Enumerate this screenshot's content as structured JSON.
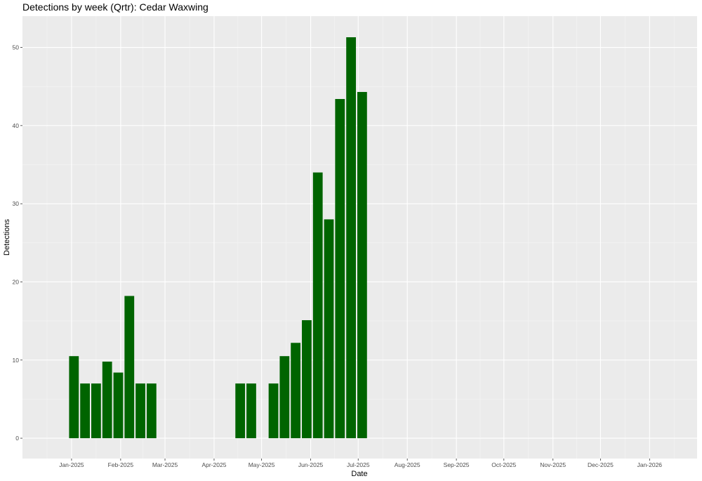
{
  "chart_data": {
    "type": "bar",
    "title": "Detections by week (Qrtr): Cedar Waxwing",
    "xlabel": "Date",
    "ylabel": "Detections",
    "ylim": [
      -2.6,
      54
    ],
    "xlim": [
      "2024-12-01",
      "2026-01-31"
    ],
    "y_ticks": [
      0,
      10,
      20,
      30,
      40,
      50
    ],
    "x_ticks": [
      {
        "date": "2025-01-01",
        "label": "Jan-2025"
      },
      {
        "date": "2025-02-01",
        "label": "Feb-2025"
      },
      {
        "date": "2025-03-01",
        "label": "Mar-2025"
      },
      {
        "date": "2025-04-01",
        "label": "Apr-2025"
      },
      {
        "date": "2025-05-01",
        "label": "May-2025"
      },
      {
        "date": "2025-06-01",
        "label": "Jun-2025"
      },
      {
        "date": "2025-07-01",
        "label": "Jul-2025"
      },
      {
        "date": "2025-08-01",
        "label": "Aug-2025"
      },
      {
        "date": "2025-09-01",
        "label": "Sep-2025"
      },
      {
        "date": "2025-10-01",
        "label": "Oct-2025"
      },
      {
        "date": "2025-11-01",
        "label": "Nov-2025"
      },
      {
        "date": "2025-12-01",
        "label": "Dec-2025"
      },
      {
        "date": "2026-01-01",
        "label": "Jan-2026"
      }
    ],
    "bar_color": "#006400",
    "panel_color": "#ebebeb",
    "grid": true,
    "legend": "none",
    "series": [
      {
        "x": [
          "2024-12-30",
          "2025-01-06",
          "2025-01-13",
          "2025-01-20",
          "2025-01-27",
          "2025-02-03",
          "2025-02-10",
          "2025-02-17",
          "2025-04-14",
          "2025-04-21",
          "2025-05-05",
          "2025-05-12",
          "2025-05-19",
          "2025-05-26",
          "2025-06-02",
          "2025-06-09",
          "2025-06-16",
          "2025-06-23",
          "2025-06-30"
        ],
        "values": [
          10.5,
          7,
          7,
          9.8,
          8.4,
          18.2,
          7,
          7,
          7,
          7,
          7,
          10.5,
          12.2,
          15.1,
          34,
          28,
          43.4,
          51.3,
          44.3
        ]
      }
    ]
  }
}
